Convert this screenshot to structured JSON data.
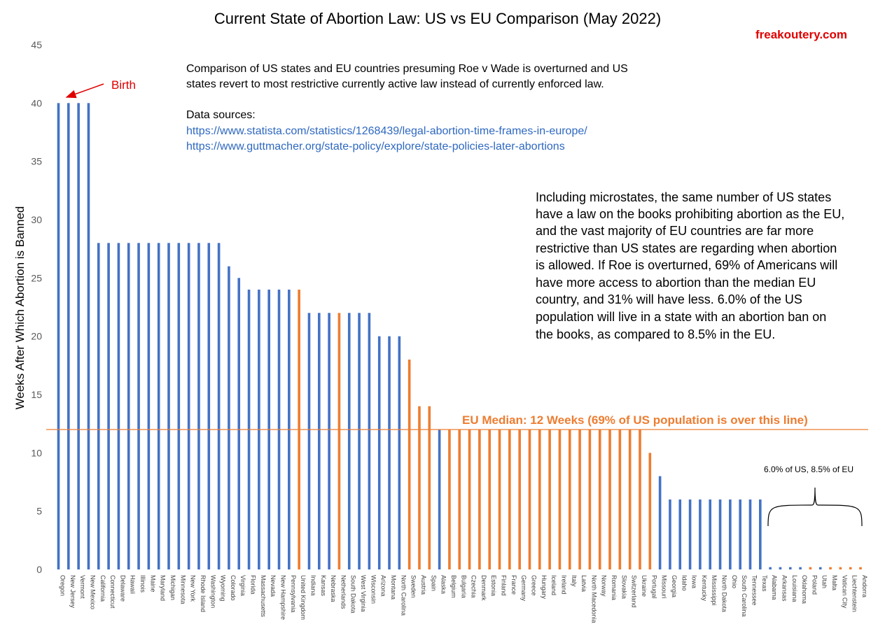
{
  "chart_data": {
    "type": "bar",
    "title": "Current State of Abortion Law: US vs EU Comparison (May 2022)",
    "ylabel": "Weeks After Which Abortion is Banned",
    "xlabel": "",
    "ylim": [
      0,
      45
    ],
    "yticks": [
      0,
      5,
      10,
      15,
      20,
      25,
      30,
      35,
      40,
      45
    ],
    "grid": false,
    "colors": {
      "US": "#4472c4",
      "EU": "#ed7d31"
    },
    "categories": [
      "Oregon",
      "New Jersey",
      "Vermont",
      "New Mexico",
      "California",
      "Connecticut",
      "Delaware",
      "Hawaii",
      "Illinois",
      "Maine",
      "Maryland",
      "Michigan",
      "Minnesota",
      "New York",
      "Rhode Island",
      "Washington",
      "Wyoming",
      "Colorado",
      "Virginia",
      "Florida",
      "Massachusetts",
      "Nevada",
      "New Hampshire",
      "Pennsylvania",
      "United Kingdom",
      "Indiana",
      "Kansas",
      "Nebraska",
      "Netherlands",
      "South Dakota",
      "West Virginia",
      "Wisconsin",
      "Arizona",
      "Montana",
      "North Carolina",
      "Sweden",
      "Austria",
      "Spain",
      "Alaska",
      "Belgium",
      "Bulgaria",
      "Czechia",
      "Denmark",
      "Estonia",
      "Finland",
      "France",
      "Germany",
      "Greece",
      "Hungary",
      "Iceland",
      "Ireland",
      "Italy",
      "Latvia",
      "North Macedonia",
      "Norway",
      "Romania",
      "Slovakia",
      "Switzerland",
      "Ukraine",
      "Portugal",
      "Missouri",
      "Georgia",
      "Idaho",
      "Iowa",
      "Kentucky",
      "Mississippi",
      "North Dakota",
      "Ohio",
      "South Carolina",
      "Tennessee",
      "Texas",
      "Alabama",
      "Arkansas",
      "Louisiana",
      "Oklahoma",
      "Poland",
      "Utah",
      "Malta",
      "Vatican City",
      "Liechtenstein",
      "Andorra"
    ],
    "values": [
      40,
      40,
      40,
      40,
      28,
      28,
      28,
      28,
      28,
      28,
      28,
      28,
      28,
      28,
      28,
      28,
      28,
      26,
      25,
      24,
      24,
      24,
      24,
      24,
      24,
      22,
      22,
      22,
      22,
      22,
      22,
      22,
      20,
      20,
      20,
      18,
      14,
      14,
      12,
      12,
      12,
      12,
      12,
      12,
      12,
      12,
      12,
      12,
      12,
      12,
      12,
      12,
      12,
      12,
      12,
      12,
      12,
      12,
      12,
      10,
      8,
      6,
      6,
      6,
      6,
      6,
      6,
      6,
      6,
      6,
      6,
      0.2,
      0.2,
      0.2,
      0.2,
      0.2,
      0.2,
      0.2,
      0.2,
      0.2,
      0.2
    ],
    "region": [
      "US",
      "US",
      "US",
      "US",
      "US",
      "US",
      "US",
      "US",
      "US",
      "US",
      "US",
      "US",
      "US",
      "US",
      "US",
      "US",
      "US",
      "US",
      "US",
      "US",
      "US",
      "US",
      "US",
      "US",
      "EU",
      "US",
      "US",
      "US",
      "EU",
      "US",
      "US",
      "US",
      "US",
      "US",
      "US",
      "EU",
      "EU",
      "EU",
      "US",
      "EU",
      "EU",
      "EU",
      "EU",
      "EU",
      "EU",
      "EU",
      "EU",
      "EU",
      "EU",
      "EU",
      "EU",
      "EU",
      "EU",
      "EU",
      "EU",
      "EU",
      "EU",
      "EU",
      "EU",
      "EU",
      "US",
      "US",
      "US",
      "US",
      "US",
      "US",
      "US",
      "US",
      "US",
      "US",
      "US",
      "US",
      "US",
      "US",
      "US",
      "EU",
      "US",
      "EU",
      "EU",
      "EU",
      "EU"
    ],
    "median_line": {
      "value": 12,
      "label": "EU Median: 12 Weeks (69% of US population is over this line)"
    },
    "annotations": {
      "birth": "Birth",
      "bracket": "6.0% of US, 8.5% of EU"
    }
  },
  "brand": "freakoutery.com",
  "notes": {
    "comparison_line1": "Comparison of US states and EU countries presuming Roe v Wade is overturned and US",
    "comparison_line2": "states revert to most restrictive currently active law instead of currently enforced law.",
    "sources_heading": "Data sources:",
    "source1": "https://www.statista.com/statistics/1268439/legal-abortion-time-frames-in-europe/",
    "source2": "https://www.guttmacher.org/state-policy/explore/state-policies-later-abortions"
  },
  "summary_lines": [
    "Including microstates, the same number of US states",
    "have a law on the books prohibiting abortion as the EU,",
    "and the vast majority of EU countries are far more",
    "restrictive than US states are regarding when abortion",
    "is allowed. If Roe is overturned, 69% of Americans will",
    "have more access to abortion than the median EU",
    "country, and 31% will have less. 6.0% of the US",
    "population will live in a state with an abortion ban on",
    "the books, as compared to 8.5% in the EU."
  ]
}
